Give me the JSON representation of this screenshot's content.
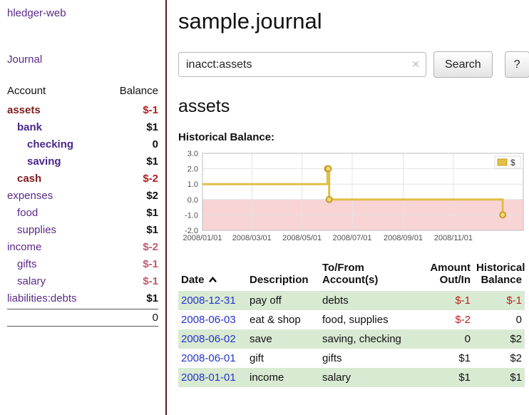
{
  "app": {
    "brand": "hledger-web",
    "nav": {
      "journal": "Journal"
    }
  },
  "sidebar": {
    "columns": {
      "account": "Account",
      "balance": "Balance"
    },
    "accounts": [
      {
        "name": "assets",
        "balance": "$-1",
        "indent": 0,
        "style": "current",
        "balance_style": "neg-strong"
      },
      {
        "name": "bank",
        "balance": "$1",
        "indent": 1,
        "style": "current-sub",
        "balance_style": "pos"
      },
      {
        "name": "checking",
        "balance": "0",
        "indent": 2,
        "style": "current-sub",
        "balance_style": "pos"
      },
      {
        "name": "saving",
        "balance": "$1",
        "indent": 2,
        "style": "current-sub",
        "balance_style": "pos"
      },
      {
        "name": "cash",
        "balance": "$-2",
        "indent": 1,
        "style": "current",
        "balance_style": "neg-strong"
      },
      {
        "name": "expenses",
        "balance": "$2",
        "indent": 0,
        "style": "normal",
        "balance_style": "pos"
      },
      {
        "name": "food",
        "balance": "$1",
        "indent": 1,
        "style": "normal",
        "balance_style": "pos"
      },
      {
        "name": "supplies",
        "balance": "$1",
        "indent": 1,
        "style": "normal",
        "balance_style": "pos"
      },
      {
        "name": "income",
        "balance": "$-2",
        "indent": 0,
        "style": "normal",
        "balance_style": "neg-soft"
      },
      {
        "name": "gifts",
        "balance": "$-1",
        "indent": 1,
        "style": "normal",
        "balance_style": "neg-soft"
      },
      {
        "name": "salary",
        "balance": "$-1",
        "indent": 1,
        "style": "normal",
        "balance_style": "neg-soft"
      },
      {
        "name": "liabilities:debts",
        "balance": "$1",
        "indent": 0,
        "style": "normal",
        "balance_style": "pos"
      }
    ],
    "total": "0"
  },
  "main": {
    "title": "sample.journal",
    "search": {
      "value": "inacct:assets",
      "clear_icon": "✕",
      "search_button": "Search",
      "help_button": "?"
    },
    "account_heading": "assets",
    "chart_title": "Historical Balance:"
  },
  "chart_data": {
    "type": "line",
    "step": true,
    "title": "Historical Balance",
    "series": [
      {
        "name": "$",
        "points": [
          {
            "date": "2008-01-01",
            "value": 1
          },
          {
            "date": "2008-06-01",
            "value": 2
          },
          {
            "date": "2008-06-02",
            "value": 2
          },
          {
            "date": "2008-06-03",
            "value": 0
          },
          {
            "date": "2008-12-31",
            "value": -1
          }
        ]
      }
    ],
    "x_start": "2008-01-01",
    "x_end": "2009-01-25",
    "x_ticks": [
      {
        "date": "2008-01-01",
        "label": "2008/01/01"
      },
      {
        "date": "2008-03-01",
        "label": "2008/03/01"
      },
      {
        "date": "2008-05-01",
        "label": "2008/05/01"
      },
      {
        "date": "2008-07-01",
        "label": "2008/07/01"
      },
      {
        "date": "2008-09-01",
        "label": "2008/09/01"
      },
      {
        "date": "2008-11-01",
        "label": "2008/11/01"
      }
    ],
    "y_ticks": [
      3,
      2,
      1,
      0,
      -1,
      -2
    ],
    "ylim": [
      -2,
      3
    ],
    "legend": {
      "label": "$",
      "position": "top-right"
    },
    "colors": {
      "line": "#e2bf45",
      "marker_fill": "#f5d76e",
      "marker_stroke": "#c49f2e",
      "negative_region": "#f9d4d4",
      "grid": "#e3e3e3",
      "border": "#bbbbbb"
    }
  },
  "table": {
    "headers": {
      "date": "Date",
      "description": "Description",
      "accounts": "To/From\nAccount(s)",
      "amount": "Amount\nOut/In",
      "balance": "Historical\nBalance"
    },
    "rows": [
      {
        "date": "2008-12-31",
        "description": "pay off",
        "accounts": "debts",
        "amount": "$-1",
        "amount_neg": true,
        "balance": "$-1",
        "balance_neg": true,
        "shaded": true
      },
      {
        "date": "2008-06-03",
        "description": "eat & shop",
        "accounts": "food, supplies",
        "amount": "$-2",
        "amount_neg": true,
        "balance": "0",
        "balance_neg": false,
        "shaded": false
      },
      {
        "date": "2008-06-02",
        "description": "save",
        "accounts": "saving, checking",
        "amount": "0",
        "amount_neg": false,
        "balance": "$2",
        "balance_neg": false,
        "shaded": true
      },
      {
        "date": "2008-06-01",
        "description": "gift",
        "accounts": "gifts",
        "amount": "$1",
        "amount_neg": false,
        "balance": "$2",
        "balance_neg": false,
        "shaded": false
      },
      {
        "date": "2008-01-01",
        "description": "income",
        "accounts": "salary",
        "amount": "$1",
        "amount_neg": false,
        "balance": "$1",
        "balance_neg": false,
        "shaded": true
      }
    ]
  }
}
